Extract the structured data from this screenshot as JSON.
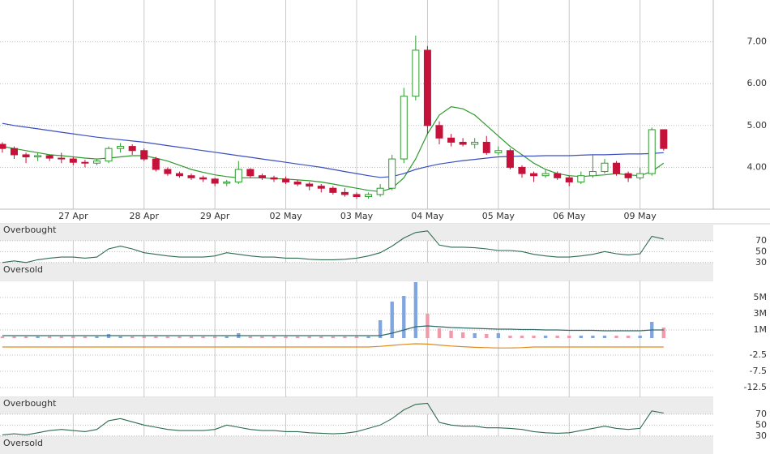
{
  "chart_data": [
    {
      "type": "candlestick",
      "xlim": [
        -0.2,
        60.2
      ],
      "xticks": [
        {
          "value": 6,
          "label": "27 Apr"
        },
        {
          "value": 12,
          "label": "28 Apr"
        },
        {
          "value": 18,
          "label": "29 Apr"
        },
        {
          "value": 24,
          "label": "02 May"
        },
        {
          "value": 30,
          "label": "03 May"
        },
        {
          "value": 36,
          "label": "04 May"
        },
        {
          "value": 42,
          "label": "05 May"
        },
        {
          "value": 48,
          "label": "06 May"
        },
        {
          "value": 54,
          "label": "09 May"
        }
      ],
      "ylim": [
        3.0,
        8.0
      ],
      "yticks": [
        {
          "value": 4,
          "label": "4.00"
        },
        {
          "value": 5,
          "label": "5.00"
        },
        {
          "value": 6,
          "label": "6.00"
        },
        {
          "value": 7,
          "label": "7.00"
        }
      ],
      "grid": true,
      "up_color": "#2e9a2e",
      "down_color": "#c4123a",
      "open": [
        4.55,
        4.45,
        4.3,
        4.25,
        4.28,
        4.22,
        4.2,
        4.12,
        4.1,
        4.15,
        4.45,
        4.5,
        4.4,
        4.2,
        3.95,
        3.85,
        3.8,
        3.75,
        3.72,
        3.62,
        3.65,
        3.95,
        3.8,
        3.75,
        3.72,
        3.65,
        3.6,
        3.55,
        3.5,
        3.4,
        3.35,
        3.3,
        3.35,
        3.5,
        4.2,
        5.7,
        6.8,
        5.0,
        4.7,
        4.6,
        4.55,
        4.6,
        4.35,
        4.4,
        4.0,
        3.85,
        3.8,
        3.85,
        3.75,
        3.65,
        3.8,
        3.9,
        4.1,
        3.85,
        3.75,
        3.85,
        4.9
      ],
      "high": [
        4.6,
        4.5,
        4.35,
        4.35,
        4.3,
        4.35,
        4.25,
        4.18,
        4.2,
        4.5,
        4.58,
        4.55,
        4.45,
        4.25,
        4.0,
        3.9,
        3.85,
        3.8,
        3.75,
        3.7,
        4.15,
        3.98,
        3.85,
        3.8,
        3.78,
        3.7,
        3.65,
        3.6,
        3.55,
        3.5,
        3.4,
        3.4,
        3.6,
        4.3,
        5.9,
        7.15,
        6.9,
        5.1,
        4.8,
        4.7,
        4.7,
        4.75,
        4.5,
        4.45,
        4.05,
        3.9,
        3.95,
        3.9,
        3.8,
        3.9,
        4.3,
        4.2,
        4.15,
        3.9,
        4.0,
        4.95,
        4.9
      ],
      "low": [
        4.35,
        4.2,
        4.1,
        4.15,
        4.15,
        4.1,
        4.05,
        4.0,
        4.05,
        4.1,
        4.35,
        4.3,
        4.15,
        3.9,
        3.8,
        3.75,
        3.7,
        3.65,
        3.55,
        3.55,
        3.6,
        3.75,
        3.7,
        3.65,
        3.6,
        3.55,
        3.45,
        3.4,
        3.35,
        3.3,
        3.25,
        3.25,
        3.3,
        3.45,
        4.1,
        5.6,
        4.8,
        4.55,
        4.5,
        4.5,
        4.45,
        4.3,
        4.3,
        3.95,
        3.75,
        3.65,
        3.75,
        3.7,
        3.55,
        3.6,
        3.75,
        3.85,
        3.8,
        3.65,
        3.7,
        3.8,
        4.4
      ],
      "close": [
        4.45,
        4.3,
        4.25,
        4.28,
        4.22,
        4.2,
        4.12,
        4.1,
        4.15,
        4.45,
        4.5,
        4.4,
        4.2,
        3.95,
        3.85,
        3.8,
        3.75,
        3.72,
        3.62,
        3.65,
        3.95,
        3.8,
        3.75,
        3.72,
        3.65,
        3.6,
        3.55,
        3.5,
        3.4,
        3.35,
        3.3,
        3.35,
        3.5,
        4.2,
        5.7,
        6.8,
        5.0,
        4.7,
        4.6,
        4.55,
        4.6,
        4.35,
        4.4,
        4.0,
        3.85,
        3.8,
        3.85,
        3.75,
        3.65,
        3.8,
        3.9,
        4.1,
        3.85,
        3.75,
        3.85,
        4.9,
        4.45
      ],
      "lines": [
        {
          "color": "#2e9a2e",
          "values": [
            4.5,
            4.45,
            4.4,
            4.35,
            4.3,
            4.28,
            4.25,
            4.22,
            4.2,
            4.22,
            4.25,
            4.28,
            4.28,
            4.22,
            4.15,
            4.05,
            3.95,
            3.88,
            3.82,
            3.78,
            3.75,
            3.75,
            3.75,
            3.73,
            3.72,
            3.7,
            3.68,
            3.65,
            3.6,
            3.55,
            3.5,
            3.45,
            3.42,
            3.5,
            3.75,
            4.2,
            4.8,
            5.25,
            5.45,
            5.4,
            5.25,
            5.0,
            4.75,
            4.5,
            4.3,
            4.1,
            3.95,
            3.85,
            3.8,
            3.78,
            3.8,
            3.82,
            3.85,
            3.82,
            3.8,
            3.9,
            4.1
          ]
        },
        {
          "color": "#3a4fbf",
          "values": [
            5.05,
            5.0,
            4.96,
            4.92,
            4.88,
            4.84,
            4.8,
            4.76,
            4.72,
            4.69,
            4.66,
            4.63,
            4.6,
            4.56,
            4.52,
            4.48,
            4.44,
            4.4,
            4.36,
            4.32,
            4.28,
            4.24,
            4.2,
            4.16,
            4.12,
            4.08,
            4.04,
            4.0,
            3.95,
            3.9,
            3.85,
            3.8,
            3.76,
            3.78,
            3.85,
            3.95,
            4.02,
            4.08,
            4.12,
            4.16,
            4.19,
            4.22,
            4.25,
            4.26,
            4.27,
            4.27,
            4.28,
            4.28,
            4.28,
            4.29,
            4.3,
            4.3,
            4.31,
            4.32,
            4.32,
            4.33,
            4.35
          ]
        }
      ]
    },
    {
      "type": "oscillator",
      "ylim": [
        -3,
        101
      ],
      "yticks": [
        30,
        50,
        70
      ],
      "overbought": "Overbought",
      "oversold": "Oversold",
      "color": "#2f6b4f",
      "values": [
        30,
        33,
        30,
        35,
        38,
        40,
        40,
        38,
        40,
        55,
        60,
        55,
        48,
        45,
        42,
        40,
        40,
        40,
        42,
        48,
        45,
        42,
        40,
        40,
        38,
        38,
        36,
        35,
        35,
        36,
        38,
        42,
        48,
        60,
        75,
        85,
        88,
        62,
        58,
        58,
        57,
        55,
        52,
        52,
        50,
        45,
        42,
        40,
        40,
        42,
        45,
        50,
        46,
        44,
        46,
        78,
        73
      ]
    },
    {
      "type": "volume",
      "ylim": [
        -7300000,
        7100000
      ],
      "yticks": [
        {
          "value": 1000000,
          "label": "1M"
        },
        {
          "value": 3000000,
          "label": "3M"
        },
        {
          "value": 5000000,
          "label": "5M"
        }
      ],
      "y2lim": [
        -15.5,
        20.5
      ],
      "y2ticks": [
        -2.5,
        -7.5,
        -12.5
      ],
      "up_color": "#7fa6e0",
      "down_color": "#f09aaa",
      "values": [
        200000,
        200000,
        200000,
        200000,
        200000,
        200000,
        200000,
        200000,
        200000,
        500000,
        200000,
        200000,
        200000,
        200000,
        200000,
        200000,
        200000,
        200000,
        200000,
        200000,
        600000,
        200000,
        200000,
        200000,
        200000,
        200000,
        200000,
        200000,
        200000,
        200000,
        200000,
        200000,
        2200000,
        4500000,
        5200000,
        6900000,
        3000000,
        1200000,
        900000,
        700000,
        600000,
        500000,
        600000,
        300000,
        300000,
        300000,
        300000,
        300000,
        300000,
        300000,
        300000,
        300000,
        300000,
        300000,
        300000,
        2000000,
        1300000
      ],
      "series": [
        {
          "color": "#2f6b6b",
          "values": [
            300000,
            300000,
            300000,
            300000,
            300000,
            300000,
            300000,
            300000,
            300000,
            300000,
            300000,
            300000,
            300000,
            300000,
            300000,
            300000,
            300000,
            300000,
            300000,
            300000,
            300000,
            300000,
            300000,
            300000,
            300000,
            300000,
            300000,
            300000,
            300000,
            300000,
            300000,
            300000,
            300000,
            600000,
            1000000,
            1400000,
            1500000,
            1400000,
            1300000,
            1250000,
            1200000,
            1150000,
            1100000,
            1100000,
            1050000,
            1050000,
            1000000,
            1000000,
            950000,
            950000,
            950000,
            900000,
            900000,
            900000,
            900000,
            1000000,
            1000000
          ]
        },
        {
          "color": "#e08a1e",
          "axis": "y2",
          "values": [
            0,
            0,
            0,
            0,
            0,
            0,
            0,
            0,
            0,
            0,
            0,
            0,
            0,
            0,
            0,
            0,
            0,
            0,
            0,
            0,
            0,
            0,
            0,
            0,
            0,
            0,
            0,
            0,
            0,
            0,
            0,
            0,
            0.2,
            0.5,
            0.8,
            1.0,
            0.9,
            0.6,
            0.3,
            0.1,
            -0.1,
            -0.2,
            -0.3,
            -0.3,
            -0.2,
            0,
            0,
            0,
            0,
            0,
            0,
            0,
            0,
            0,
            0,
            0,
            0
          ]
        }
      ]
    },
    {
      "type": "oscillator",
      "ylim": [
        -3,
        101
      ],
      "yticks": [
        30,
        50,
        70
      ],
      "overbought": "Overbought",
      "oversold": "Oversold",
      "color": "#2f6b4f",
      "values": [
        32,
        34,
        32,
        36,
        40,
        42,
        40,
        38,
        42,
        58,
        62,
        56,
        50,
        46,
        42,
        40,
        40,
        40,
        42,
        50,
        46,
        42,
        40,
        40,
        38,
        38,
        36,
        35,
        34,
        35,
        38,
        44,
        50,
        62,
        78,
        88,
        90,
        55,
        50,
        48,
        48,
        45,
        45,
        44,
        42,
        38,
        36,
        35,
        36,
        40,
        44,
        48,
        44,
        42,
        44,
        76,
        72
      ]
    }
  ]
}
